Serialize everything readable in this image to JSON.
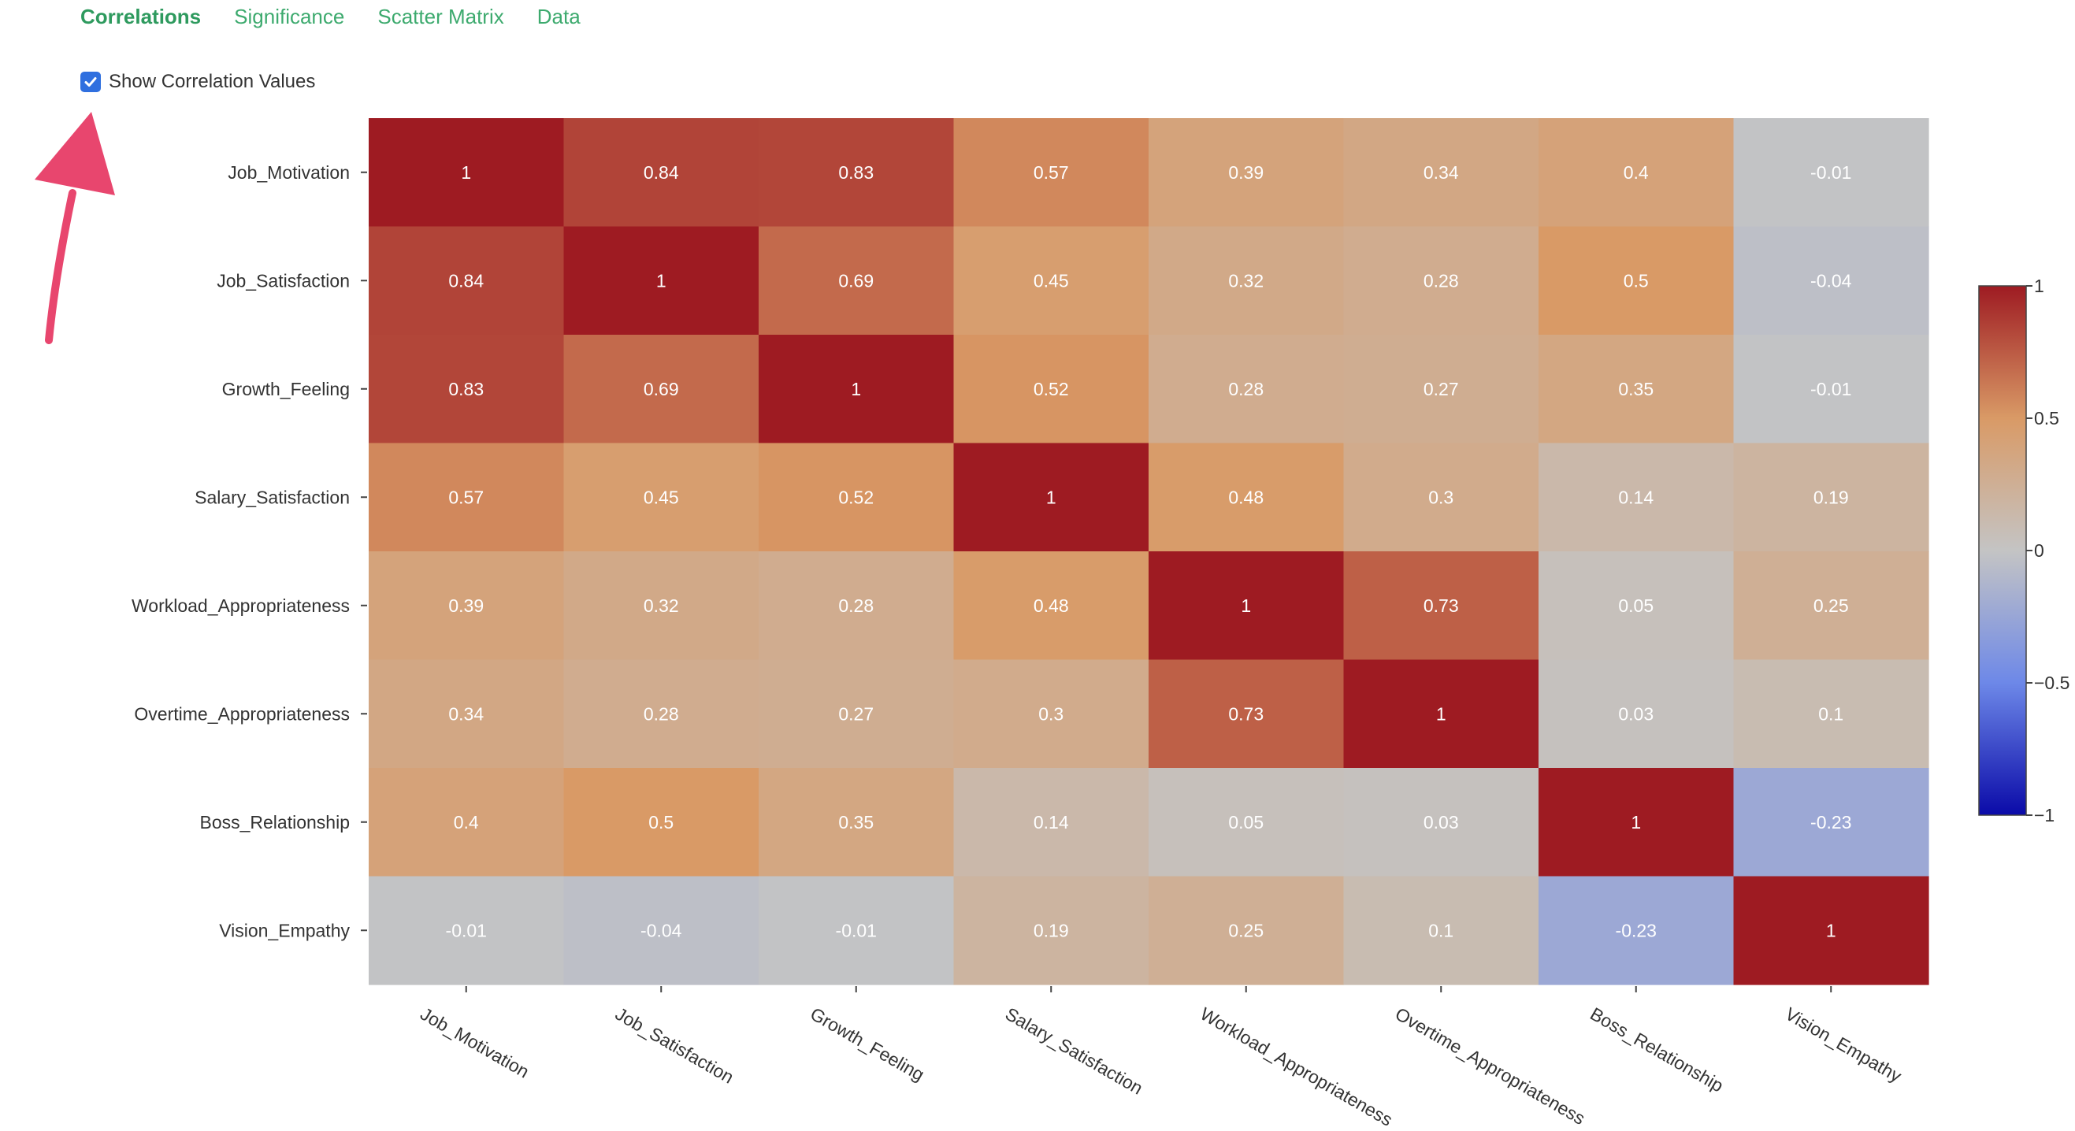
{
  "tabs": [
    {
      "label": "Correlations",
      "active": true
    },
    {
      "label": "Significance",
      "active": false
    },
    {
      "label": "Scatter Matrix",
      "active": false
    },
    {
      "label": "Data",
      "active": false
    }
  ],
  "options": {
    "show_values_label": "Show Correlation Values",
    "show_values_checked": true
  },
  "annotation": {
    "icon": "arrow-up-pointer-icon",
    "color": "#e8466e"
  },
  "chart_data": {
    "type": "heatmap",
    "rows": [
      "Job_Motivation",
      "Job_Satisfaction",
      "Growth_Feeling",
      "Salary_Satisfaction",
      "Workload_Appropriateness",
      "Overtime_Appropriateness",
      "Boss_Relationship",
      "Vision_Empathy"
    ],
    "columns": [
      "Job_Motivation",
      "Job_Satisfaction",
      "Growth_Feeling",
      "Salary_Satisfaction",
      "Workload_Appropriateness",
      "Overtime_Appropriateness",
      "Boss_Relationship",
      "Vision_Empathy"
    ],
    "values": [
      [
        1,
        0.84,
        0.83,
        0.57,
        0.39,
        0.34,
        0.4,
        -0.01
      ],
      [
        0.84,
        1,
        0.69,
        0.45,
        0.32,
        0.28,
        0.5,
        -0.04
      ],
      [
        0.83,
        0.69,
        1,
        0.52,
        0.28,
        0.27,
        0.35,
        -0.01
      ],
      [
        0.57,
        0.45,
        0.52,
        1,
        0.48,
        0.3,
        0.14,
        0.19
      ],
      [
        0.39,
        0.32,
        0.28,
        0.48,
        1,
        0.73,
        0.05,
        0.25
      ],
      [
        0.34,
        0.28,
        0.27,
        0.3,
        0.73,
        1,
        0.03,
        0.1
      ],
      [
        0.4,
        0.5,
        0.35,
        0.14,
        0.05,
        0.03,
        1,
        -0.23
      ],
      [
        -0.01,
        -0.04,
        -0.01,
        0.19,
        0.25,
        0.1,
        -0.23,
        1
      ]
    ],
    "colorscale": {
      "min": -1,
      "max": 1,
      "stops": [
        {
          "v": -1,
          "color": "#0a0aa8"
        },
        {
          "v": -0.5,
          "color": "#6d88e8"
        },
        {
          "v": 0,
          "color": "#c4c4c4"
        },
        {
          "v": 0.5,
          "color": "#d99a66"
        },
        {
          "v": 1,
          "color": "#9e1b22"
        }
      ],
      "ticks": [
        1,
        0.5,
        0,
        -0.5,
        -1
      ],
      "tick_labels": [
        "1",
        "0.5",
        "0",
        "−0.5",
        "−1"
      ]
    }
  }
}
